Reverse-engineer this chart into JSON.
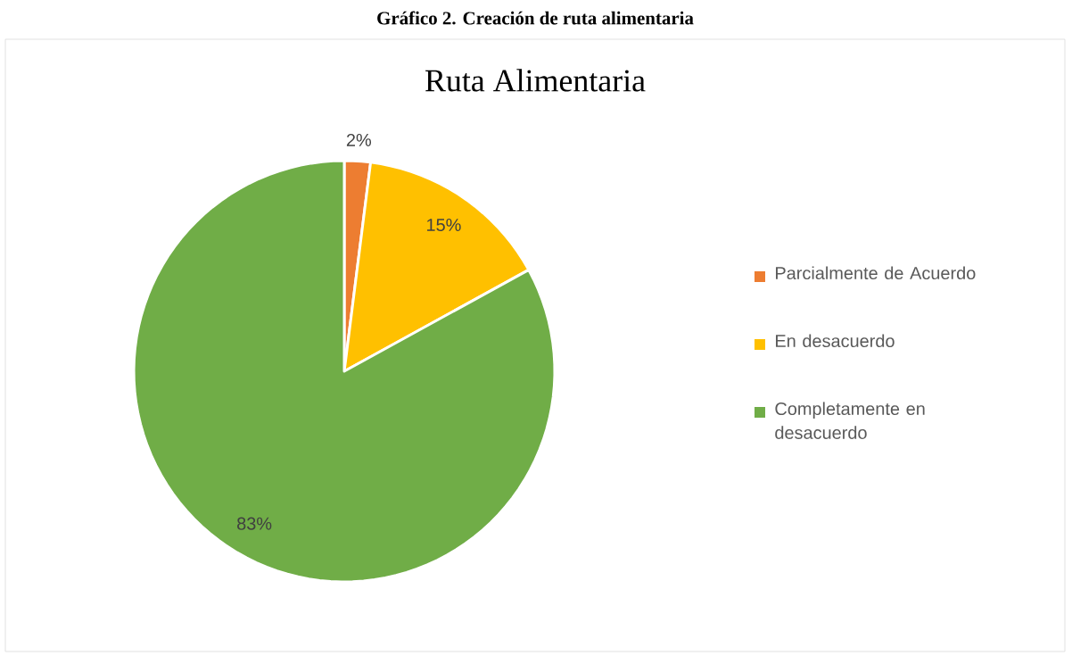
{
  "chart_data": {
    "type": "pie",
    "title": "Gráfico 2. Creación de ruta alimentaria",
    "subtitle": "Ruta Alimentaria",
    "categories": [
      "Parcialmente de Acuerdo",
      "En desacuerdo",
      "Completamente en desacuerdo"
    ],
    "values": [
      2,
      15,
      83
    ],
    "colors": [
      "#ed7d31",
      "#ffc000",
      "#70ad47"
    ],
    "value_labels": [
      "2%",
      "15%",
      "83%"
    ],
    "legend": "right"
  }
}
